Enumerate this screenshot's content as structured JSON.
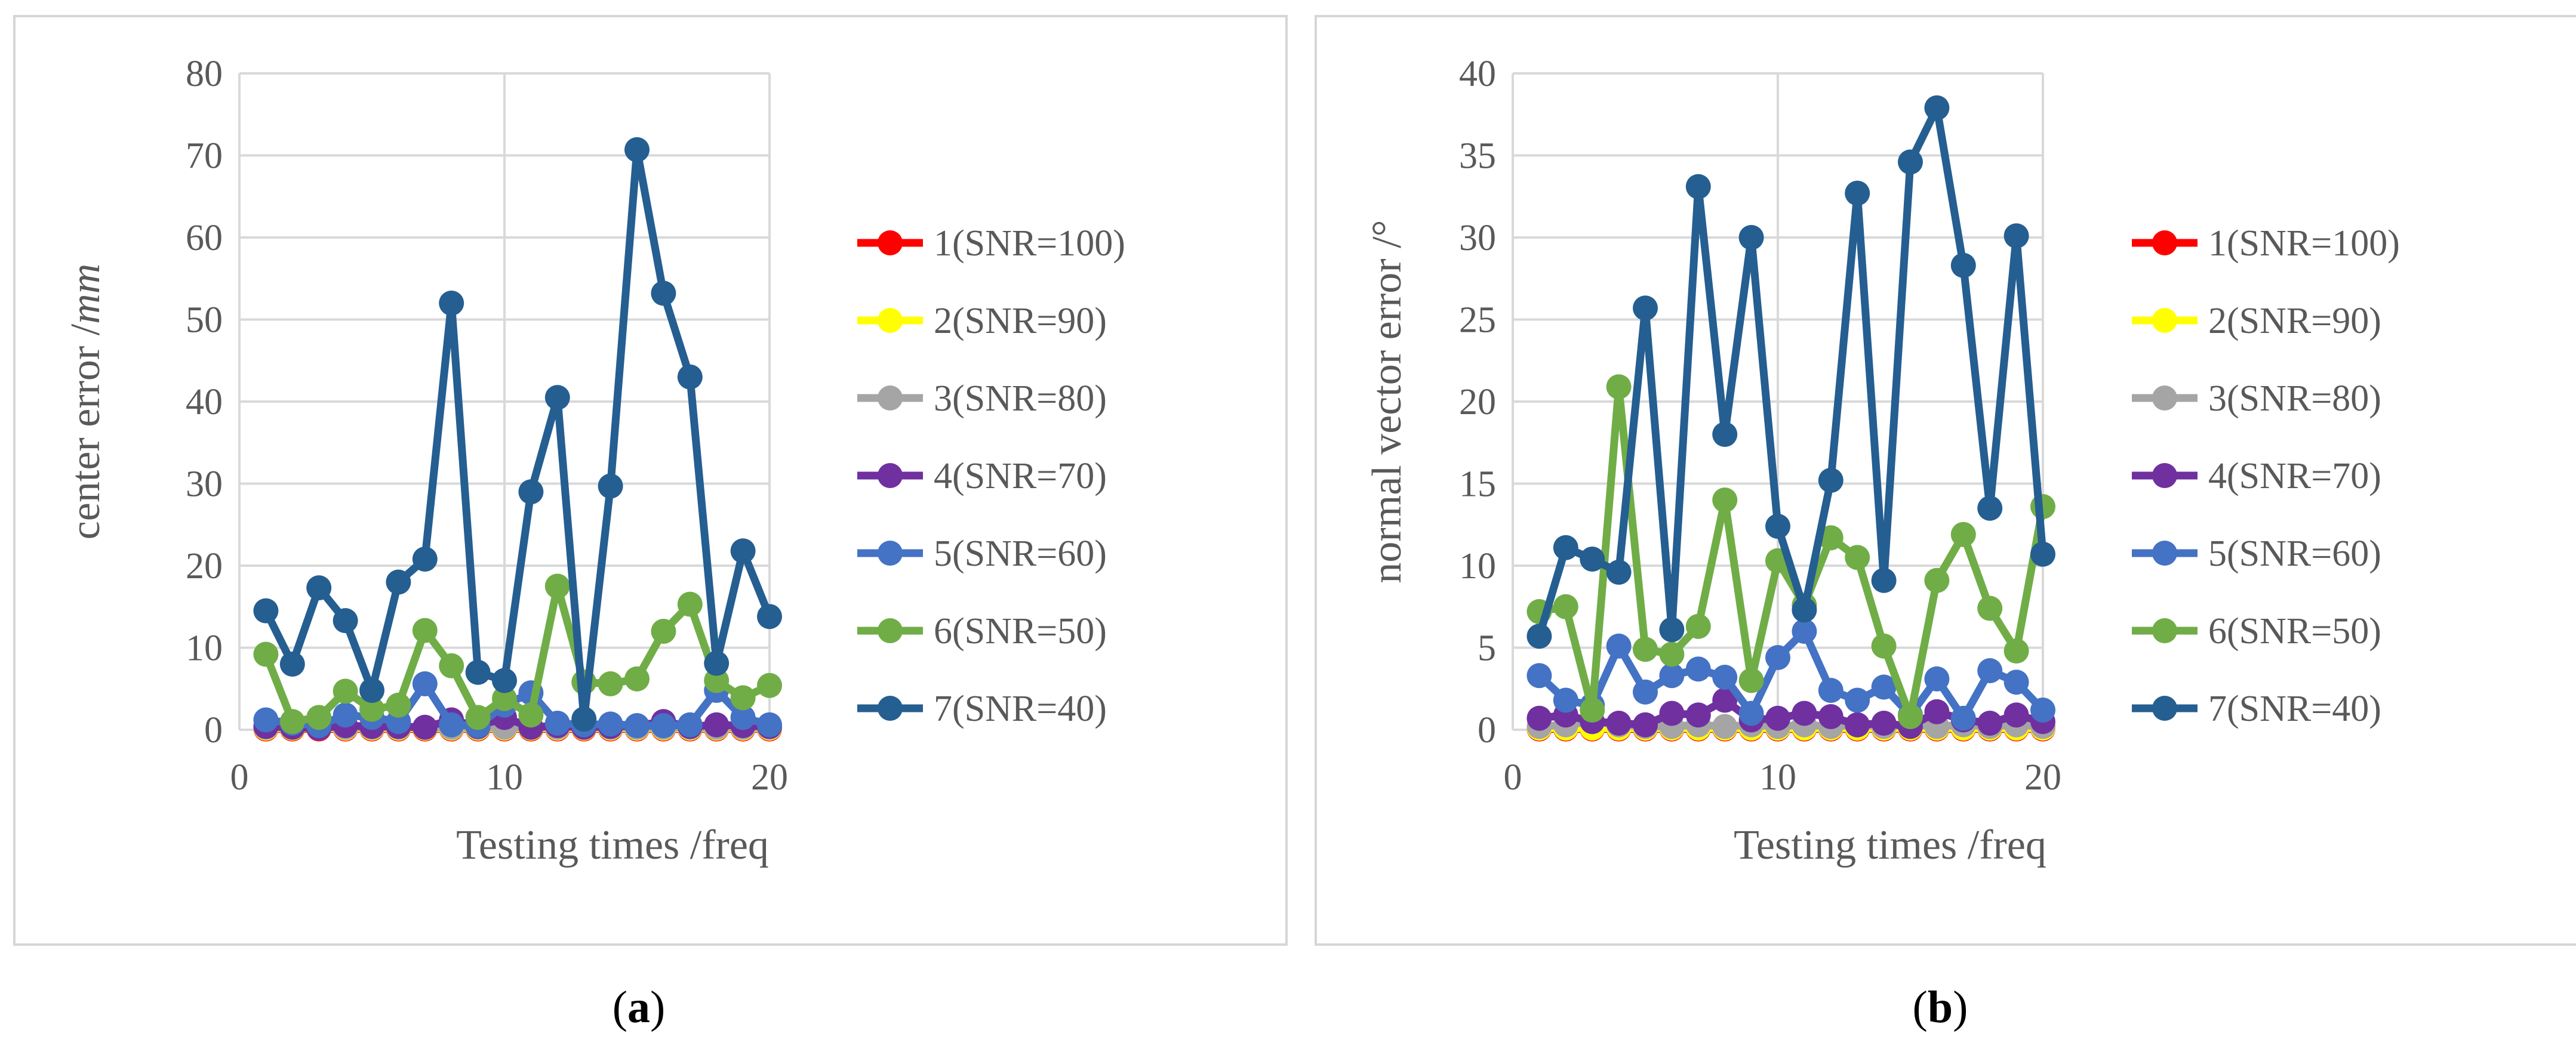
{
  "series_meta": [
    {
      "name": "1(SNR=100)",
      "color": "#ff0000"
    },
    {
      "name": "2(SNR=90)",
      "color": "#ffff00"
    },
    {
      "name": "3(SNR=80)",
      "color": "#a5a5a5"
    },
    {
      "name": "4(SNR=70)",
      "color": "#7030a0"
    },
    {
      "name": "5(SNR=60)",
      "color": "#4472c4"
    },
    {
      "name": "6(SNR=50)",
      "color": "#70ad47"
    },
    {
      "name": "7(SNR=40)",
      "color": "#255e91"
    }
  ],
  "captions": {
    "a": "a",
    "b": "b"
  },
  "chart_data": [
    {
      "type": "line",
      "xlabel": "Testing times /freq",
      "ylabel_prefix": "center error /",
      "ylabel_unit": "mm",
      "ylabel": "center error /mm",
      "xlim": [
        0,
        20
      ],
      "ylim": [
        0,
        80
      ],
      "xticks": [
        0,
        10,
        20
      ],
      "yticks": [
        0,
        10,
        20,
        30,
        40,
        50,
        60,
        70,
        80
      ],
      "x": [
        1,
        2,
        3,
        4,
        5,
        6,
        7,
        8,
        9,
        10,
        11,
        12,
        13,
        14,
        15,
        16,
        17,
        18,
        19,
        20
      ],
      "series": [
        {
          "name": "1(SNR=100)",
          "values": [
            0.1,
            0.1,
            0.1,
            0.1,
            0.1,
            0.1,
            0.1,
            0.1,
            0.1,
            0.1,
            0.1,
            0.1,
            0.1,
            0.1,
            0.1,
            0.1,
            0.1,
            0.1,
            0.1,
            0.1
          ]
        },
        {
          "name": "2(SNR=90)",
          "values": [
            0.2,
            0.2,
            0.2,
            0.2,
            0.2,
            0.2,
            0.2,
            0.2,
            0.2,
            0.2,
            0.2,
            0.2,
            0.2,
            0.2,
            0.2,
            0.2,
            0.2,
            0.2,
            0.2,
            0.2
          ]
        },
        {
          "name": "3(SNR=80)",
          "values": [
            0.3,
            0.3,
            0.3,
            0.3,
            0.3,
            0.3,
            0.3,
            0.3,
            0.3,
            0.3,
            0.3,
            0.3,
            0.3,
            0.3,
            0.3,
            0.3,
            0.3,
            0.3,
            0.3,
            0.3
          ]
        },
        {
          "name": "4(SNR=70)",
          "values": [
            0.4,
            0.3,
            0.2,
            0.5,
            0.4,
            0.4,
            0.3,
            1.2,
            0.4,
            1.5,
            0.3,
            0.5,
            0.3,
            0.4,
            0.5,
            1.0,
            0.4,
            0.6,
            0.5,
            0.4
          ]
        },
        {
          "name": "5(SNR=60)",
          "values": [
            1.2,
            0.8,
            0.5,
            1.8,
            1.5,
            1.0,
            5.6,
            0.6,
            0.5,
            3.0,
            4.5,
            0.8,
            0.6,
            0.7,
            0.5,
            0.5,
            0.6,
            4.8,
            1.5,
            0.6
          ]
        },
        {
          "name": "6(SNR=50)",
          "values": [
            9.2,
            1.0,
            1.5,
            4.7,
            2.5,
            3.0,
            12.1,
            7.8,
            1.5,
            3.8,
            1.8,
            17.5,
            5.8,
            5.6,
            6.2,
            12.0,
            15.3,
            6.0,
            3.9,
            5.4
          ]
        },
        {
          "name": "7(SNR=40)",
          "values": [
            14.5,
            8.0,
            17.3,
            13.3,
            4.8,
            18.0,
            20.8,
            52.0,
            7.0,
            6.0,
            29.0,
            40.5,
            1.3,
            29.7,
            70.7,
            53.2,
            43.0,
            8.1,
            21.8,
            13.8
          ]
        }
      ]
    },
    {
      "type": "line",
      "xlabel": "Testing times /freq",
      "ylabel_prefix": "normal vector error /",
      "ylabel_unit": "°",
      "ylabel": "normal vector error /°",
      "xlim": [
        0,
        20
      ],
      "ylim": [
        0,
        40
      ],
      "xticks": [
        0,
        10,
        20
      ],
      "yticks": [
        0,
        5,
        10,
        15,
        20,
        25,
        30,
        35,
        40
      ],
      "x": [
        1,
        2,
        3,
        4,
        5,
        6,
        7,
        8,
        9,
        10,
        11,
        12,
        13,
        14,
        15,
        16,
        17,
        18,
        19,
        20
      ],
      "series": [
        {
          "name": "1(SNR=100)",
          "values": [
            0.05,
            0.05,
            0.05,
            0.05,
            0.05,
            0.05,
            0.05,
            0.05,
            0.05,
            0.05,
            0.05,
            0.05,
            0.05,
            0.05,
            0.05,
            0.05,
            0.05,
            0.05,
            0.05,
            0.05
          ]
        },
        {
          "name": "2(SNR=90)",
          "values": [
            0.1,
            0.1,
            0.1,
            0.1,
            0.1,
            0.1,
            0.1,
            0.1,
            0.1,
            0.1,
            0.1,
            0.1,
            0.1,
            0.1,
            0.1,
            0.1,
            0.1,
            0.1,
            0.1,
            0.1
          ]
        },
        {
          "name": "3(SNR=80)",
          "values": [
            0.2,
            0.3,
            0.5,
            0.3,
            0.2,
            0.2,
            0.3,
            0.2,
            0.3,
            0.2,
            0.3,
            0.2,
            0.3,
            0.2,
            0.3,
            0.2,
            0.3,
            0.2,
            0.3,
            0.2
          ]
        },
        {
          "name": "4(SNR=70)",
          "values": [
            0.7,
            0.9,
            0.5,
            0.4,
            0.3,
            1.0,
            0.9,
            1.8,
            0.6,
            0.7,
            1.0,
            0.8,
            0.3,
            0.4,
            0.2,
            1.1,
            0.6,
            0.4,
            0.9,
            0.5
          ]
        },
        {
          "name": "5(SNR=60)",
          "values": [
            3.3,
            1.8,
            1.5,
            5.1,
            2.3,
            3.3,
            3.7,
            3.2,
            1.0,
            4.4,
            6.0,
            2.4,
            1.8,
            2.6,
            0.9,
            3.1,
            0.7,
            3.6,
            2.9,
            1.2
          ]
        },
        {
          "name": "6(SNR=50)",
          "values": [
            7.2,
            7.5,
            1.2,
            20.9,
            4.9,
            4.6,
            6.3,
            14.0,
            3.0,
            10.3,
            7.6,
            11.7,
            10.5,
            5.1,
            0.8,
            9.1,
            11.9,
            7.4,
            4.8,
            13.6
          ]
        },
        {
          "name": "7(SNR=40)",
          "values": [
            5.7,
            11.1,
            10.4,
            9.6,
            25.7,
            6.1,
            33.1,
            18.0,
            30.0,
            12.4,
            7.3,
            15.2,
            32.7,
            9.1,
            34.6,
            37.9,
            28.3,
            13.5,
            30.1,
            10.7
          ]
        }
      ]
    }
  ]
}
